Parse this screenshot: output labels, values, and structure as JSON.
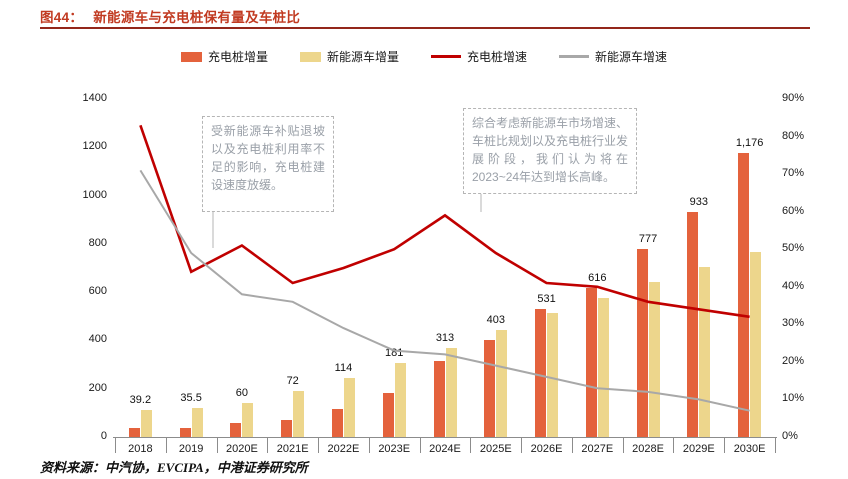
{
  "header": {
    "label": "图44：",
    "title": "新能源车与充电桩保有量及车桩比",
    "accent_color": "#C13A21"
  },
  "chart_data": {
    "type": "bar",
    "subtype": "combo-bar-line-dual-axis",
    "categories": [
      "2018",
      "2019",
      "2020E",
      "2021E",
      "2022E",
      "2023E",
      "2024E",
      "2025E",
      "2026E",
      "2027E",
      "2028E",
      "2029E",
      "2030E"
    ],
    "series": [
      {
        "name": "充电桩增量",
        "type": "bar",
        "axis": "left",
        "color": "#E4623C",
        "values": [
          39.2,
          35.5,
          60,
          72,
          114,
          181,
          313,
          403,
          531,
          616,
          777,
          933,
          1176
        ],
        "data_labels": [
          "39.2",
          "35.5",
          "60",
          "72",
          "114",
          "181",
          "313",
          "403",
          "531",
          "616",
          "777",
          "933",
          "1,176"
        ]
      },
      {
        "name": "新能源车增量",
        "type": "bar",
        "axis": "left",
        "color": "#EDD68C",
        "values": [
          110,
          120,
          140,
          190,
          245,
          305,
          370,
          445,
          515,
          575,
          640,
          705,
          765
        ]
      },
      {
        "name": "充电桩增速",
        "type": "line",
        "axis": "right",
        "color": "#C00000",
        "values": [
          83,
          44,
          51,
          41,
          45,
          50,
          59,
          49,
          41,
          40,
          36,
          34,
          32
        ]
      },
      {
        "name": "新能源车增速",
        "type": "line",
        "axis": "right",
        "color": "#A8A8A8",
        "values": [
          71,
          49,
          38,
          36,
          29,
          23,
          22,
          19,
          16,
          13,
          12,
          10,
          7
        ]
      }
    ],
    "left_axis": {
      "min": 0,
      "max": 1400,
      "step": 200,
      "tick_labels": [
        "0",
        "200",
        "400",
        "600",
        "800",
        "1000",
        "1200",
        "1400"
      ]
    },
    "right_axis": {
      "min": 0,
      "max": 90,
      "step": 10,
      "tick_labels": [
        "0%",
        "10%",
        "20%",
        "30%",
        "40%",
        "50%",
        "60%",
        "70%",
        "80%",
        "90%"
      ]
    },
    "legend_position": "top",
    "grid": false
  },
  "annotations": [
    {
      "text": "受新能源车补贴退坡以及充电桩利用率不足的影响，充电桩建设速度放缓。"
    },
    {
      "text": "综合考虑新能源车市场增速、车桩比规划以及充电桩行业发展阶段，我们认为将在2023~24年达到增长高峰。"
    }
  ],
  "footer": {
    "source": "资料来源：中汽协，EVCIPA，中港证券研究所"
  }
}
